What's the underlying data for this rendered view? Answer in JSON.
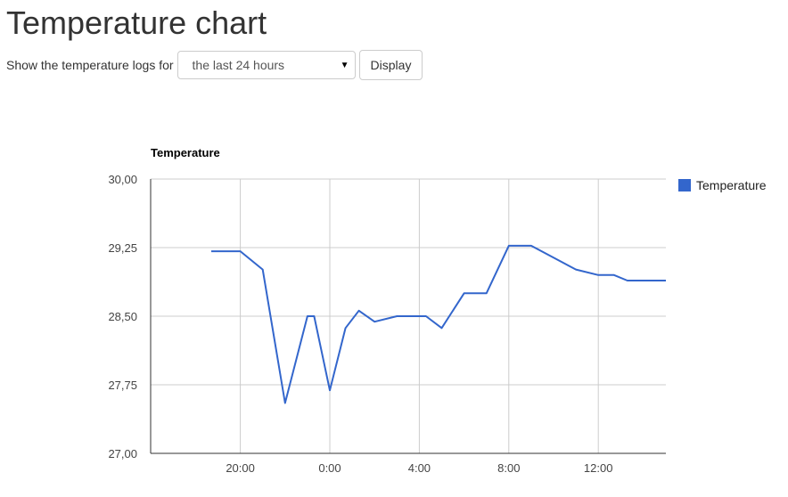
{
  "page": {
    "title": "Temperature chart"
  },
  "controls": {
    "label": "Show the temperature logs for",
    "range_select": {
      "selected": "the last 24 hours"
    },
    "display_button": "Display"
  },
  "chart_data": {
    "type": "line",
    "title": "Temperature",
    "xlabel": "",
    "ylabel": "",
    "x_unit": "hours relative to midnight (0:00)",
    "x": [
      -5.3,
      -4.7,
      -4.0,
      -3.0,
      -2.0,
      -1.0,
      -0.7,
      0.0,
      0.7,
      1.3,
      2.0,
      3.0,
      3.7,
      4.3,
      5.0,
      6.0,
      7.0,
      8.0,
      9.0,
      10.0,
      11.0,
      12.0,
      12.7,
      13.3,
      14.0,
      14.7,
      15.5
    ],
    "y": [
      29.21,
      29.21,
      29.21,
      29.01,
      27.55,
      28.5,
      28.5,
      27.69,
      28.37,
      28.56,
      28.44,
      28.5,
      28.5,
      28.5,
      28.37,
      28.75,
      28.75,
      29.27,
      29.27,
      29.14,
      29.01,
      28.95,
      28.95,
      28.89,
      28.89,
      28.89,
      28.89
    ],
    "series": [
      {
        "name": "Temperature",
        "color": "#3366cc"
      }
    ],
    "xlim": [
      -20,
      15.5
    ],
    "ylim": [
      27.0,
      30.0
    ],
    "y_ticks": [
      {
        "value": 27.0,
        "label": "27,00"
      },
      {
        "value": 27.75,
        "label": "27,75"
      },
      {
        "value": 28.5,
        "label": "28,50"
      },
      {
        "value": 29.25,
        "label": "29,25"
      },
      {
        "value": 30.0,
        "label": "30,00"
      }
    ],
    "x_ticks": [
      {
        "value": -4,
        "label": "20:00"
      },
      {
        "value": 0,
        "label": "0:00"
      },
      {
        "value": 4,
        "label": "4:00"
      },
      {
        "value": 8,
        "label": "8:00"
      },
      {
        "value": 12,
        "label": "12:00"
      }
    ],
    "grid": true,
    "legend_position": "right"
  }
}
